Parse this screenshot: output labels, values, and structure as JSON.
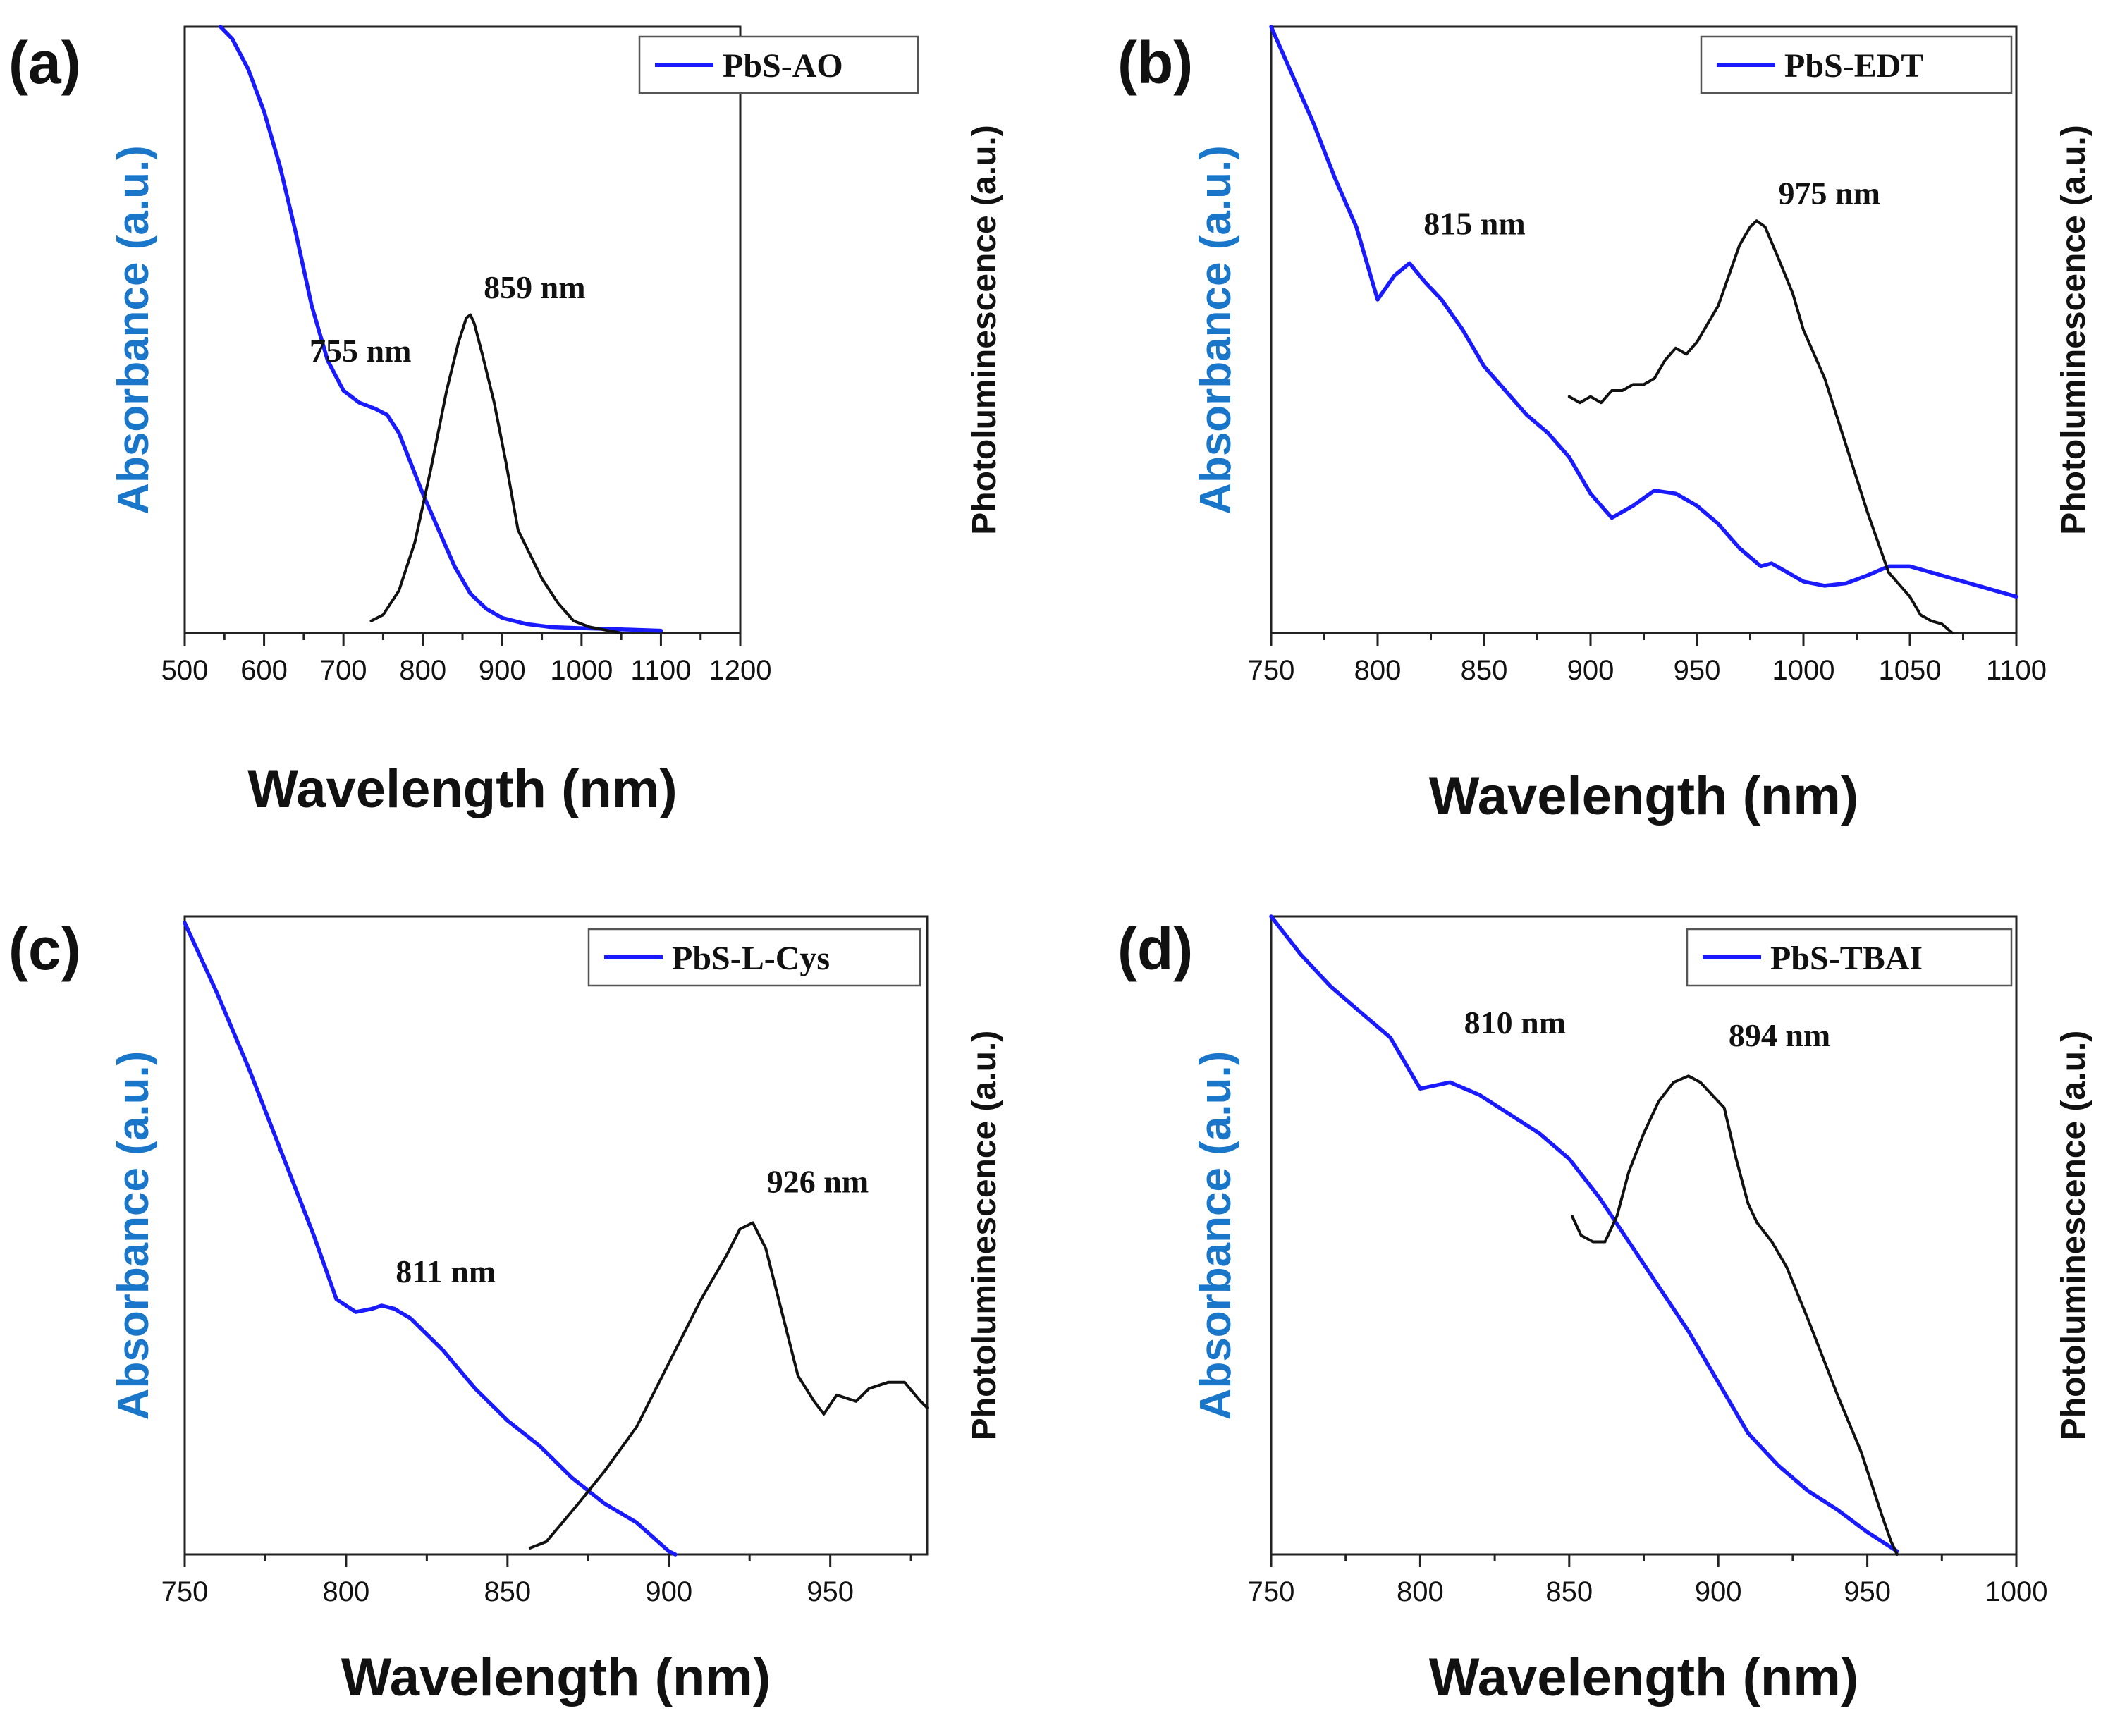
{
  "figure": {
    "colors": {
      "absorbance": "#1a1aff",
      "photoluminescence": "#111111",
      "absorbance_axis_label": "#1976c9",
      "axes": "#222222"
    }
  },
  "chart_data": [
    {
      "panel": "(a)",
      "type": "line",
      "xlabel": "Wavelength (nm)",
      "ylabel_left": "Absorbance (a.u.)",
      "ylabel_right": "Photoluminescence (a.u.)",
      "xlim": [
        500,
        1200
      ],
      "xticks": [
        500,
        600,
        700,
        800,
        900,
        1000,
        1100,
        1200
      ],
      "ylim": [
        0,
        1
      ],
      "legend": {
        "label": "PbS-AO",
        "placement": "top-right"
      },
      "annotations": [
        {
          "text": "755 nm",
          "x": 755,
          "y": 0.43
        },
        {
          "text": "859 nm",
          "x": 859,
          "y": 0.535
        }
      ],
      "series": [
        {
          "name": "PbS-AO",
          "role": "absorbance",
          "x": [
            545,
            560,
            580,
            600,
            620,
            640,
            660,
            680,
            700,
            720,
            740,
            755,
            770,
            785,
            800,
            820,
            840,
            860,
            880,
            900,
            930,
            960,
            1000,
            1050,
            1100
          ],
          "y": [
            1.0,
            0.98,
            0.93,
            0.86,
            0.77,
            0.66,
            0.54,
            0.45,
            0.4,
            0.38,
            0.37,
            0.36,
            0.33,
            0.28,
            0.23,
            0.17,
            0.11,
            0.065,
            0.04,
            0.025,
            0.015,
            0.01,
            0.008,
            0.006,
            0.004
          ]
        },
        {
          "name": "PL",
          "role": "photoluminescence",
          "x": [
            735,
            750,
            770,
            790,
            810,
            830,
            845,
            855,
            860,
            865,
            875,
            890,
            905,
            920,
            935,
            950,
            970,
            990,
            1010,
            1030,
            1050
          ],
          "y": [
            0.02,
            0.03,
            0.07,
            0.15,
            0.27,
            0.4,
            0.48,
            0.52,
            0.525,
            0.51,
            0.46,
            0.38,
            0.28,
            0.17,
            0.13,
            0.09,
            0.05,
            0.02,
            0.01,
            0.005,
            0.0
          ]
        }
      ]
    },
    {
      "panel": "(b)",
      "type": "line",
      "xlabel": "Wavelength (nm)",
      "ylabel_left": "Absorbance (a.u.)",
      "ylabel_right": "Photoluminescence (a.u.)",
      "xlim": [
        750,
        1100
      ],
      "xticks": [
        750,
        800,
        850,
        900,
        950,
        1000,
        1050,
        1100
      ],
      "ylim": [
        0,
        1
      ],
      "legend": {
        "label": "PbS-EDT",
        "placement": "top-right"
      },
      "annotations": [
        {
          "text": "815 nm",
          "x": 815,
          "y": 0.64
        },
        {
          "text": "975 nm",
          "x": 975,
          "y": 0.69
        }
      ],
      "series": [
        {
          "name": "PbS-EDT",
          "role": "absorbance",
          "x": [
            750,
            760,
            770,
            780,
            790,
            800,
            808,
            815,
            822,
            830,
            840,
            850,
            860,
            870,
            880,
            890,
            900,
            910,
            920,
            930,
            940,
            950,
            960,
            970,
            980,
            985,
            990,
            1000,
            1010,
            1020,
            1030,
            1040,
            1050,
            1060,
            1070,
            1080,
            1090,
            1100
          ],
          "y": [
            1.0,
            0.92,
            0.84,
            0.75,
            0.67,
            0.55,
            0.59,
            0.61,
            0.58,
            0.55,
            0.5,
            0.44,
            0.4,
            0.36,
            0.33,
            0.29,
            0.23,
            0.19,
            0.21,
            0.235,
            0.23,
            0.21,
            0.18,
            0.14,
            0.11,
            0.115,
            0.105,
            0.085,
            0.078,
            0.082,
            0.095,
            0.11,
            0.11,
            0.1,
            0.09,
            0.08,
            0.07,
            0.06
          ]
        },
        {
          "name": "PL",
          "role": "photoluminescence",
          "x": [
            890,
            895,
            900,
            905,
            910,
            915,
            920,
            925,
            930,
            935,
            940,
            945,
            950,
            955,
            960,
            965,
            970,
            975,
            978,
            982,
            988,
            995,
            1000,
            1010,
            1020,
            1030,
            1040,
            1045,
            1050,
            1055,
            1060,
            1065,
            1070
          ],
          "y": [
            0.39,
            0.38,
            0.39,
            0.38,
            0.4,
            0.4,
            0.41,
            0.41,
            0.42,
            0.45,
            0.47,
            0.46,
            0.48,
            0.51,
            0.54,
            0.59,
            0.64,
            0.67,
            0.68,
            0.67,
            0.62,
            0.56,
            0.5,
            0.42,
            0.31,
            0.2,
            0.1,
            0.08,
            0.06,
            0.03,
            0.02,
            0.015,
            0.0
          ]
        }
      ]
    },
    {
      "panel": "(c)",
      "type": "line",
      "xlabel": "Wavelength (nm)",
      "ylabel_left": "Absorbance (a.u.)",
      "ylabel_right": "Photoluminescence (a.u.)",
      "xlim": [
        750,
        980
      ],
      "xticks": [
        750,
        800,
        850,
        900,
        950
      ],
      "ylim": [
        0,
        1
      ],
      "legend": {
        "label": "PbS-L-Cys",
        "placement": "top-right"
      },
      "annotations": [
        {
          "text": "811 nm",
          "x": 811,
          "y": 0.41
        },
        {
          "text": "926 nm",
          "x": 926,
          "y": 0.54
        }
      ],
      "series": [
        {
          "name": "PbS-L-Cys",
          "role": "absorbance",
          "x": [
            750,
            760,
            770,
            780,
            790,
            797,
            803,
            808,
            811,
            815,
            820,
            830,
            840,
            850,
            860,
            870,
            880,
            890,
            900,
            902
          ],
          "y": [
            0.99,
            0.88,
            0.76,
            0.63,
            0.5,
            0.4,
            0.38,
            0.385,
            0.39,
            0.385,
            0.37,
            0.32,
            0.26,
            0.21,
            0.17,
            0.12,
            0.08,
            0.05,
            0.005,
            0.0
          ]
        },
        {
          "name": "PL",
          "role": "photoluminescence",
          "x": [
            857,
            862,
            867,
            872,
            880,
            890,
            900,
            910,
            918,
            922,
            926,
            930,
            935,
            940,
            945,
            948,
            952,
            958,
            962,
            968,
            973,
            978,
            980
          ],
          "y": [
            0.01,
            0.02,
            0.05,
            0.08,
            0.13,
            0.2,
            0.3,
            0.4,
            0.47,
            0.51,
            0.52,
            0.48,
            0.38,
            0.28,
            0.24,
            0.22,
            0.25,
            0.24,
            0.26,
            0.27,
            0.27,
            0.24,
            0.23
          ]
        }
      ]
    },
    {
      "panel": "(d)",
      "type": "line",
      "xlabel": "Wavelength (nm)",
      "ylabel_left": "Absorbance (a.u.)",
      "ylabel_right": "Photoluminescence (a.u.)",
      "xlim": [
        750,
        1000
      ],
      "xticks": [
        750,
        800,
        850,
        900,
        950,
        1000
      ],
      "ylim": [
        0,
        1
      ],
      "legend": {
        "label": "PbS-TBAI",
        "placement": "top-right"
      },
      "annotations": [
        {
          "text": "810 nm",
          "x": 810,
          "y": 0.8
        },
        {
          "text": "894 nm",
          "x": 894,
          "y": 0.78
        }
      ],
      "series": [
        {
          "name": "PbS-TBAI",
          "role": "absorbance",
          "x": [
            750,
            760,
            770,
            780,
            790,
            800,
            810,
            820,
            830,
            840,
            850,
            860,
            870,
            880,
            890,
            900,
            910,
            920,
            930,
            940,
            950,
            960
          ],
          "y": [
            1.0,
            0.94,
            0.89,
            0.85,
            0.81,
            0.73,
            0.74,
            0.72,
            0.69,
            0.66,
            0.62,
            0.56,
            0.49,
            0.42,
            0.35,
            0.27,
            0.19,
            0.14,
            0.1,
            0.07,
            0.035,
            0.005
          ]
        },
        {
          "name": "PL",
          "role": "photoluminescence",
          "x": [
            851,
            854,
            858,
            862,
            866,
            870,
            875,
            880,
            885,
            890,
            894,
            898,
            902,
            906,
            910,
            913,
            918,
            923,
            930,
            940,
            948,
            955,
            958,
            960
          ],
          "y": [
            0.53,
            0.5,
            0.49,
            0.49,
            0.53,
            0.6,
            0.66,
            0.71,
            0.74,
            0.75,
            0.74,
            0.72,
            0.7,
            0.62,
            0.55,
            0.52,
            0.49,
            0.45,
            0.37,
            0.25,
            0.16,
            0.06,
            0.02,
            0.0
          ]
        }
      ]
    }
  ]
}
